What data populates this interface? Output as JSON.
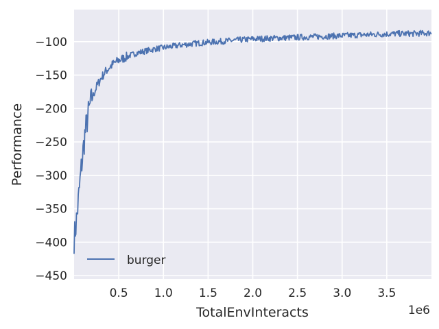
{
  "chart_data": {
    "type": "line",
    "title": "",
    "xlabel": "TotalEnvInteracts",
    "ylabel": "Performance",
    "x_offset_label": "1e6",
    "xlim": [
      0,
      4000000
    ],
    "ylim": [
      -455,
      -52
    ],
    "x_ticks": [
      500000,
      1000000,
      1500000,
      2000000,
      2500000,
      3000000,
      3500000
    ],
    "x_tick_labels": [
      "0.5",
      "1.0",
      "1.5",
      "2.0",
      "2.5",
      "3.0",
      "3.5"
    ],
    "y_ticks": [
      -450,
      -400,
      -350,
      -300,
      -250,
      -200,
      -150,
      -100
    ],
    "y_tick_labels": [
      "−450",
      "−400",
      "−350",
      "−300",
      "−250",
      "−200",
      "−150",
      "−100"
    ],
    "grid": true,
    "legend_position": "lower-left",
    "series": [
      {
        "name": "burger",
        "color": "#4c72b0",
        "x": [
          0,
          20000,
          40000,
          60000,
          80000,
          100000,
          120000,
          150000,
          180000,
          220000,
          260000,
          300000,
          350000,
          400000,
          450000,
          500000,
          600000,
          700000,
          800000,
          900000,
          1000000,
          1200000,
          1400000,
          1600000,
          1800000,
          2000000,
          2200000,
          2400000,
          2600000,
          2800000,
          3000000,
          3200000,
          3400000,
          3600000,
          3800000,
          4000000
        ],
        "y": [
          -395,
          -375,
          -350,
          -320,
          -290,
          -265,
          -240,
          -215,
          -195,
          -178,
          -165,
          -155,
          -145,
          -138,
          -132,
          -128,
          -122,
          -117,
          -114,
          -111,
          -109,
          -105,
          -102,
          -100,
          -98,
          -96,
          -95,
          -94,
          -93,
          -92,
          -91,
          -90,
          -89,
          -88,
          -88,
          -87
        ]
      }
    ],
    "noise_seed": 7
  }
}
